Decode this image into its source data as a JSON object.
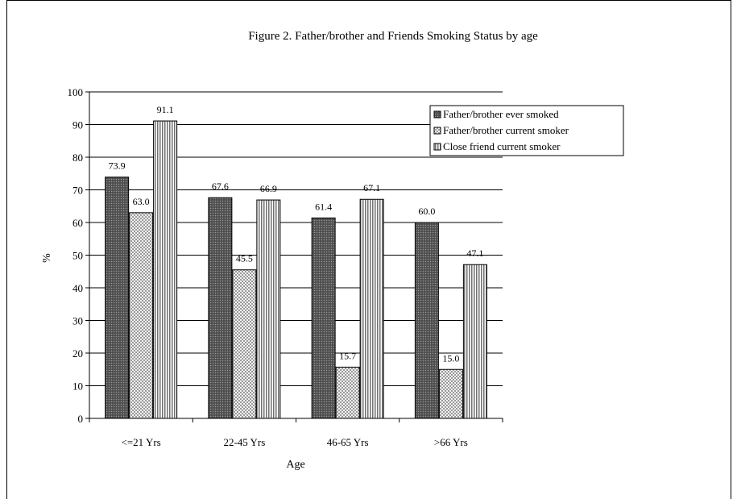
{
  "chart_data": {
    "type": "bar",
    "title": "Figure 2.  Father/brother and Friends Smoking Status by age",
    "xlabel": "Age",
    "ylabel": "%",
    "ylim": [
      0,
      100
    ],
    "yticks": [
      0,
      10,
      20,
      30,
      40,
      50,
      60,
      70,
      80,
      90,
      100
    ],
    "grid": true,
    "legend_position": "top-right",
    "categories": [
      "<=21 Yrs",
      "22-45 Yrs",
      "46-65 Yrs",
      ">66 Yrs"
    ],
    "series": [
      {
        "name": "Father/brother ever smoked",
        "values": [
          73.9,
          67.6,
          61.4,
          60.0
        ],
        "labels": [
          "73.9",
          "67.6",
          "61.4",
          "60.0"
        ],
        "pattern": "dark-dots",
        "color": "#555555"
      },
      {
        "name": "Father/brother current smoker",
        "values": [
          63.0,
          45.5,
          15.7,
          15.0
        ],
        "labels": [
          "63.0",
          "45.5",
          "15.7",
          "15.0"
        ],
        "pattern": "light-checker",
        "color": "#dddddd"
      },
      {
        "name": "Close friend current smoker",
        "values": [
          91.1,
          66.9,
          67.1,
          47.1
        ],
        "labels": [
          "91.1",
          "66.9",
          "67.1",
          "47.1"
        ],
        "pattern": "vertical-stripes",
        "color": "#bbbbbb"
      }
    ]
  }
}
